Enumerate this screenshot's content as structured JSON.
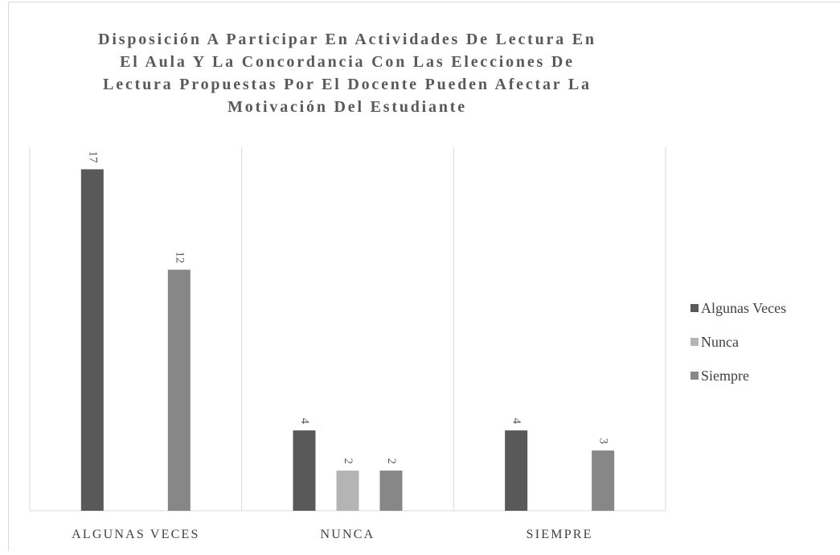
{
  "chart_data": {
    "type": "bar",
    "title": [
      "Disposición A Participar En Actividades De Lectura En",
      "El Aula Y La Concordancia Con Las Elecciones De",
      "Lectura Propuestas Por El Docente Pueden Afectar La",
      "Motivación Del Estudiante"
    ],
    "categories": [
      "ALGUNAS VECES",
      "NUNCA",
      "SIEMPRE"
    ],
    "series": [
      {
        "name": "Algunas Veces",
        "color": "#595959",
        "values": [
          17,
          4,
          4
        ]
      },
      {
        "name": "Nunca",
        "color": "#b4b4b4",
        "values": [
          null,
          2,
          null
        ]
      },
      {
        "name": "Siempre",
        "color": "#878787",
        "values": [
          12,
          2,
          3
        ]
      }
    ],
    "ylim": [
      0,
      18.1
    ],
    "legend": "right"
  }
}
